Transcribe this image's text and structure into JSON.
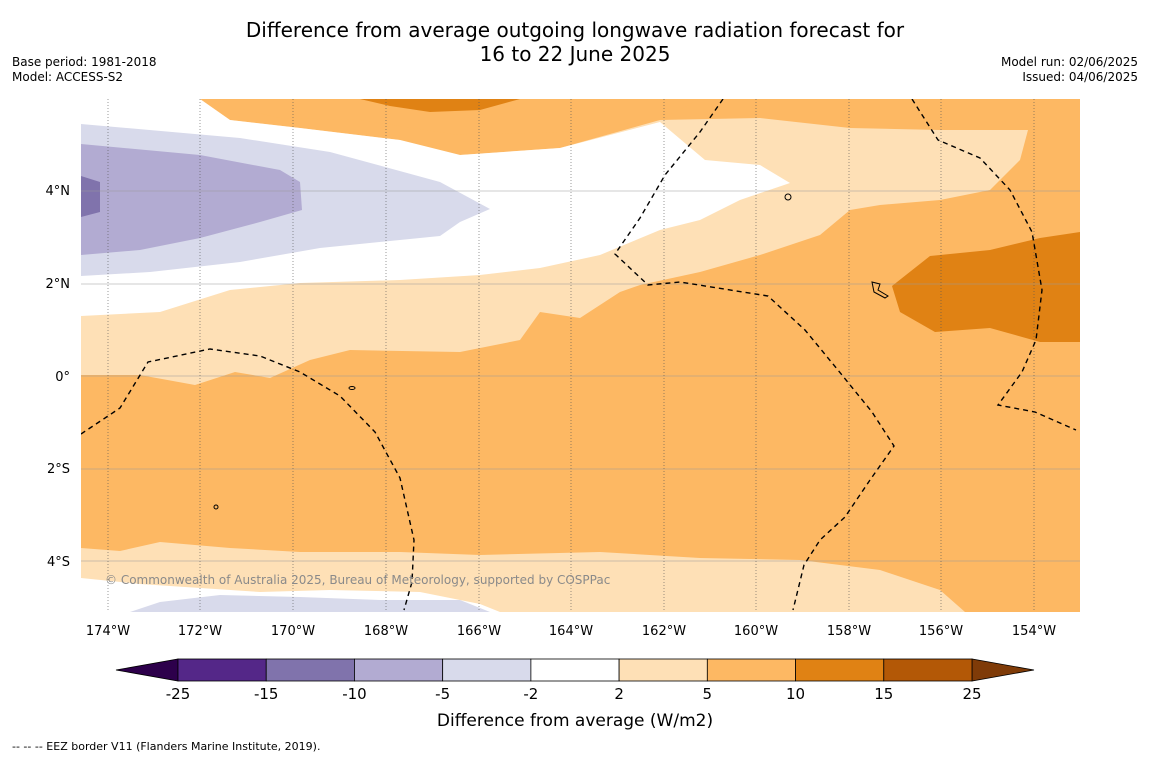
{
  "title": {
    "line1": "Difference from average outgoing longwave radiation forecast for",
    "line2": "16 to 22 June 2025"
  },
  "meta_left": {
    "base_period": "Base period: 1981-2018",
    "model": "Model: ACCESS-S2"
  },
  "meta_right": {
    "model_run": "Model run: 02/06/2025",
    "issued": "Issued: 04/06/2025"
  },
  "map": {
    "lat_labels": [
      "4°N",
      "2°N",
      "0°",
      "2°S",
      "4°S"
    ],
    "lon_labels": [
      "174°W",
      "172°W",
      "170°W",
      "168°W",
      "166°W",
      "164°W",
      "162°W",
      "160°W",
      "158°W",
      "156°W",
      "154°W"
    ],
    "copyright": "© Commonwealth of Australia 2025, Bureau of Meteorology, supported by COSPPac"
  },
  "colorbar": {
    "ticks": [
      "-25",
      "-15",
      "-10",
      "-5",
      "-2",
      "2",
      "5",
      "10",
      "15",
      "25"
    ],
    "colors": [
      "#542788",
      "#8073ac",
      "#b2abd2",
      "#d8daeb",
      "#ffffff",
      "#fee0b6",
      "#fdb863",
      "#e08214",
      "#b35806"
    ],
    "low_extend": "#2d004b",
    "high_extend": "#7f3b08",
    "label": "Difference from average (W/m2)"
  },
  "footer": "--  --  -- EEZ border V11 (Flanders Marine Institute, 2019)."
}
